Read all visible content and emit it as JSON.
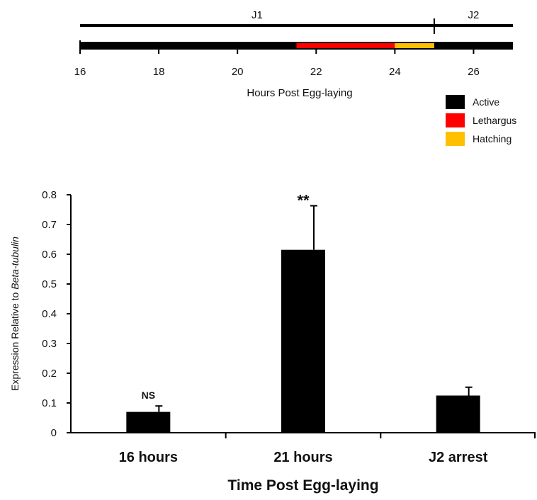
{
  "chart_data": [
    {
      "type": "timeline",
      "stages": [
        {
          "label": "J1",
          "start": 16,
          "end": 25
        },
        {
          "label": "J2",
          "start": 25,
          "end": 27
        }
      ],
      "xlabel": "Hours Post Egg-laying",
      "xlim": [
        16,
        27
      ],
      "ticks": [
        16,
        18,
        20,
        22,
        24,
        26
      ],
      "segments": [
        {
          "state": "Active",
          "start": 16,
          "end": 21.5
        },
        {
          "state": "Lethargus",
          "start": 21.5,
          "end": 24
        },
        {
          "state": "Hatching",
          "start": 24,
          "end": 25
        },
        {
          "state": "Active",
          "start": 25,
          "end": 27
        }
      ],
      "legend": [
        {
          "label": "Active",
          "color": "#000000"
        },
        {
          "label": "Lethargus",
          "color": "#ff0000"
        },
        {
          "label": "Hatching",
          "color": "#ffc000"
        }
      ],
      "legend_position": "bottom-right"
    },
    {
      "type": "bar",
      "categories": [
        "16 hours",
        "21 hours",
        "J2 arrest"
      ],
      "values": [
        0.07,
        0.615,
        0.125
      ],
      "errors": [
        0.02,
        0.148,
        0.028
      ],
      "annotations": [
        "NS",
        "**",
        ""
      ],
      "xlabel": "Time Post Egg-laying",
      "ylabel_prefix": "Expression Relative to ",
      "ylabel_italic": "Beta-tubulin",
      "ylim": [
        0,
        0.8
      ],
      "yticks": [
        0,
        0.1,
        0.2,
        0.3,
        0.4,
        0.5,
        0.6,
        0.7,
        0.8
      ],
      "bar_color": "#000000",
      "grid": false
    }
  ]
}
